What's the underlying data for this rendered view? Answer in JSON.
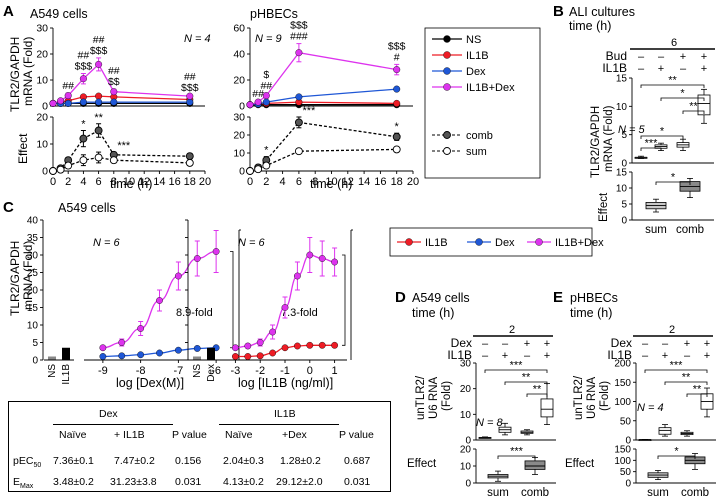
{
  "colors": {
    "ns": "#000000",
    "il1b": "#ee1c25",
    "dex": "#1f57d6",
    "combo": "#dd33ee",
    "sum_fill": "#ffffff",
    "comb_fill": "#555555",
    "box_sum": "#c8c8c8",
    "box_comb": "#8a8a8a"
  },
  "icons": {
    "marker": "circle-marker",
    "bracket": "significance-bracket"
  },
  "panels": {
    "A": {
      "letter": "A",
      "ylabel_top": "TLR2/GAPDH",
      "ylabel_mid": "mRNA (Fold)",
      "effect_label": "Effect",
      "xlabel": "time (h)",
      "legend": [
        "NS",
        "IL1B",
        "Dex",
        "IL1B+Dex"
      ],
      "legend2": [
        "comb",
        "sum"
      ]
    },
    "B": {
      "letter": "B",
      "title": "ALI cultures",
      "time_label": "time (h)",
      "time_value": "6",
      "row1": "Bud",
      "row2": "IL1B",
      "row1_signs": [
        "–",
        "–",
        "+",
        "+"
      ],
      "row2_signs": [
        "–",
        "+",
        "–",
        "+"
      ],
      "ylabel_top": "TLR2/GAPDH",
      "ylabel_mid": "mRNA (Fold)",
      "effect_label": "Effect",
      "n_label": "N = 5",
      "xcats": [
        "sum",
        "comb"
      ]
    },
    "C": {
      "letter": "C",
      "title": "A549 cells",
      "ylabel_top": "TLR2/GAPDH",
      "ylabel_mid": "mRNA (Fold)",
      "ns_label": "NS",
      "il1b_label": "IL1B",
      "dex_label": "Dex",
      "xlabel_left": "log [Dex(M)]",
      "xlabel_right": "log [IL1B (ng/ml)]",
      "fold_left": "8.9-fold",
      "fold_right": "7.3-fold",
      "n_label": "N = 6",
      "legend": [
        "IL1B",
        "Dex",
        "IL1B+Dex"
      ]
    },
    "D": {
      "letter": "D",
      "title": "A549 cells",
      "time_label": "time (h)",
      "time_value": "2",
      "row1": "Dex",
      "row2": "IL1B",
      "row1_signs": [
        "–",
        "–",
        "+",
        "+"
      ],
      "row2_signs": [
        "–",
        "+",
        "–",
        "+"
      ],
      "ylabel_top": "unTLR2/",
      "ylabel_mid": "U6 RNA",
      "ylabel_bot": "(Fold)",
      "effect_label": "Effect",
      "n_label": "N = 8",
      "xcats": [
        "sum",
        "comb"
      ]
    },
    "E": {
      "letter": "E",
      "title": "pHBECs",
      "time_label": "time (h)",
      "time_value": "2",
      "row1": "Dex",
      "row2": "IL1B",
      "row1_signs": [
        "–",
        "–",
        "+",
        "+"
      ],
      "row2_signs": [
        "–",
        "+",
        "–",
        "+"
      ],
      "ylabel_top": "unTLR2/",
      "ylabel_mid": "U6 RNA",
      "ylabel_bot": "(Fold)",
      "effect_label": "Effect",
      "n_label": "N = 4",
      "xcats": [
        "sum",
        "comb"
      ]
    }
  },
  "table": {
    "dex_header": "Dex",
    "il1b_header": "IL1B",
    "cols": [
      "Naïve",
      "+ IL1B",
      "P value",
      "Naïve",
      "+Dex",
      "P value"
    ],
    "rows": [
      {
        "label": "pEC",
        "label_sub": "50",
        "values": [
          "7.36±0.1",
          "7.47±0.2",
          "0.156",
          "2.04±0.3",
          "1.28±0.2",
          "0.687"
        ]
      },
      {
        "label": "E",
        "label_sub": "Max",
        "values": [
          "3.48±0.2",
          "31.23±3.8",
          "0.031",
          "4.13±0.2",
          "29.12±2.0",
          "0.031"
        ]
      }
    ]
  },
  "chart_data": [
    {
      "panel": "A-left",
      "type": "line",
      "title": "A549 cells",
      "xlabel": "time (h)",
      "ylabel": "TLR2/GAPDH mRNA (Fold)",
      "xlim": [
        0,
        20
      ],
      "ylim": [
        0,
        30
      ],
      "xticks": [
        0,
        2,
        4,
        6,
        8,
        10,
        12,
        14,
        16,
        18,
        20
      ],
      "yticks": [
        0,
        10,
        20,
        30
      ],
      "n_label": "N = 4",
      "x": [
        0,
        1,
        2,
        4,
        6,
        8,
        18
      ],
      "series": [
        {
          "name": "NS",
          "values": [
            1,
            1,
            1,
            1,
            1,
            1,
            1
          ]
        },
        {
          "name": "IL1B",
          "values": [
            1,
            1.5,
            2,
            3.5,
            3.8,
            3.5,
            2.5
          ]
        },
        {
          "name": "Dex",
          "values": [
            1,
            1,
            1,
            1.5,
            1.5,
            1.5,
            1.5
          ]
        },
        {
          "name": "IL1B+Dex",
          "values": [
            1,
            2,
            4,
            10.5,
            16,
            5.5,
            3.8
          ],
          "errors": [
            0,
            0.5,
            1,
            2,
            2.5,
            1,
            0.5
          ]
        }
      ],
      "sig_labels": [
        {
          "x": 2,
          "lines": [
            "##"
          ]
        },
        {
          "x": 4,
          "lines": [
            "##",
            "$$$"
          ]
        },
        {
          "x": 6,
          "lines": [
            "##",
            "$$$"
          ]
        },
        {
          "x": 8,
          "lines": [
            "##",
            "$$"
          ]
        },
        {
          "x": 18,
          "lines": [
            "##",
            "$$$"
          ]
        }
      ]
    },
    {
      "panel": "A-left-effect",
      "type": "line",
      "ylabel": "Effect",
      "ylim": [
        0,
        20
      ],
      "yticks": [
        0,
        10,
        20
      ],
      "x": [
        0,
        1,
        2,
        4,
        6,
        8,
        18
      ],
      "series": [
        {
          "name": "comb",
          "values": [
            0,
            1,
            4,
            12,
            15,
            6,
            5.5
          ],
          "errors": [
            0,
            0.5,
            1,
            3,
            2.5,
            1,
            1
          ]
        },
        {
          "name": "sum",
          "values": [
            0,
            0.5,
            2,
            4,
            5,
            4,
            3
          ],
          "errors": [
            0,
            0.5,
            1,
            2,
            2,
            1,
            0.5
          ]
        }
      ],
      "sig_labels": [
        {
          "x": 4,
          "text": "*"
        },
        {
          "x": 6,
          "text": "**"
        },
        {
          "x": 8,
          "text": "***"
        }
      ]
    },
    {
      "panel": "A-right",
      "type": "line",
      "title": "pHBECs",
      "xlabel": "time (h)",
      "xlim": [
        0,
        20
      ],
      "ylim": [
        0,
        60
      ],
      "xticks": [
        0,
        2,
        4,
        6,
        8,
        10,
        12,
        14,
        16,
        18,
        20
      ],
      "yticks": [
        0,
        20,
        40,
        60
      ],
      "n_label": "N = 9",
      "x": [
        0,
        1,
        2,
        6,
        18
      ],
      "series": [
        {
          "name": "NS",
          "values": [
            1,
            1,
            1,
            1,
            1
          ]
        },
        {
          "name": "IL1B",
          "values": [
            1,
            1.5,
            2,
            3,
            2
          ]
        },
        {
          "name": "Dex",
          "values": [
            1,
            1.5,
            3,
            7,
            13
          ]
        },
        {
          "name": "IL1B+Dex",
          "values": [
            1,
            3,
            8,
            41,
            28
          ],
          "errors": [
            0,
            1,
            2,
            7,
            4
          ]
        }
      ],
      "sig_labels": [
        {
          "x": 1,
          "lines": [
            "##"
          ]
        },
        {
          "x": 2,
          "lines": [
            "$",
            "##"
          ]
        },
        {
          "x": 6,
          "lines": [
            "$$$",
            "###"
          ]
        },
        {
          "x": 18,
          "lines": [
            "$$$",
            "#"
          ]
        }
      ]
    },
    {
      "panel": "A-right-effect",
      "type": "line",
      "ylim": [
        0,
        30
      ],
      "yticks": [
        0,
        10,
        20,
        30
      ],
      "x": [
        0,
        1,
        2,
        6,
        18
      ],
      "series": [
        {
          "name": "comb",
          "values": [
            0,
            2,
            6,
            27,
            19
          ],
          "errors": [
            0,
            1,
            2,
            3,
            2
          ]
        },
        {
          "name": "sum",
          "values": [
            0,
            1,
            3,
            11,
            12
          ],
          "errors": [
            0,
            0.5,
            1,
            1,
            1
          ]
        }
      ],
      "sig_labels": [
        {
          "x": 2,
          "text": "*"
        },
        {
          "x": 6,
          "text": "***"
        },
        {
          "x": 18,
          "text": "*"
        }
      ]
    },
    {
      "panel": "B",
      "type": "box",
      "ylim": [
        0,
        15
      ],
      "yticks": [
        0,
        5,
        10,
        15
      ],
      "categories": [
        "NS",
        "IL1B",
        "Bud",
        "Bud+IL1B"
      ],
      "boxes": [
        [
          0.8,
          1,
          1,
          1,
          1.2
        ],
        [
          2.2,
          2.6,
          2.9,
          3.2,
          3.5
        ],
        [
          2.2,
          2.8,
          3.2,
          3.6,
          4.2
        ],
        [
          7,
          8.5,
          10.5,
          12,
          13
        ]
      ],
      "brackets": [
        "**",
        "*",
        "**",
        "*",
        "***"
      ],
      "effect": {
        "ylim": [
          0,
          15
        ],
        "yticks": [
          0,
          5,
          10,
          15
        ],
        "categories": [
          "sum",
          "comb"
        ],
        "boxes": [
          [
            2.5,
            3.5,
            4.5,
            5.5,
            6.5
          ],
          [
            7,
            9,
            10.5,
            12,
            13
          ]
        ],
        "brackets": [
          "*"
        ]
      }
    },
    {
      "panel": "C-left",
      "type": "line",
      "xlabel": "log [Dex(M)]",
      "xlim": [
        -9.5,
        -5.5
      ],
      "xticks": [
        -9,
        -8,
        -7,
        -6
      ],
      "ylim": [
        0,
        40
      ],
      "yticks": [
        0,
        5,
        10,
        15,
        20,
        25,
        30,
        35,
        40
      ],
      "bars": [
        {
          "name": "NS",
          "value": 1
        },
        {
          "name": "IL1B",
          "value": 3.5
        }
      ],
      "x": [
        -9,
        -8.5,
        -8,
        -7.5,
        -7,
        -6.5,
        -6
      ],
      "series": [
        {
          "name": "IL1B+Dex",
          "values": [
            3.5,
            5,
            9,
            17,
            24,
            29,
            31
          ],
          "errors": [
            0.5,
            1,
            2,
            3,
            4,
            5,
            6
          ]
        },
        {
          "name": "Dex",
          "values": [
            1,
            1.2,
            1.5,
            2,
            2.8,
            3.3,
            3.5
          ]
        }
      ]
    },
    {
      "panel": "C-right",
      "type": "line",
      "xlabel": "log [IL1B (ng/ml)]",
      "xlim": [
        -3.5,
        1.5
      ],
      "xticks": [
        -3,
        -2,
        -1,
        0,
        1
      ],
      "ylim": [
        0,
        40
      ],
      "yticks": [
        0,
        5,
        10,
        15,
        20,
        25,
        30,
        35,
        40
      ],
      "bars": [
        {
          "name": "NS",
          "value": 1
        },
        {
          "name": "Dex",
          "value": 3.5
        }
      ],
      "x": [
        -3,
        -2.5,
        -2,
        -1.5,
        -1,
        -0.5,
        0,
        0.5,
        1
      ],
      "series": [
        {
          "name": "IL1B+Dex",
          "values": [
            3.5,
            4,
            5,
            8,
            15,
            24,
            30,
            29,
            28
          ],
          "errors": [
            0.5,
            0.5,
            1,
            2,
            3,
            4,
            5,
            5,
            4
          ]
        },
        {
          "name": "IL1B",
          "values": [
            1,
            1,
            1.2,
            2,
            3.5,
            4,
            4.2,
            4.2,
            4.2
          ]
        }
      ]
    },
    {
      "panel": "D",
      "type": "box",
      "ylim": [
        0,
        30
      ],
      "yticks": [
        0,
        10,
        20,
        30
      ],
      "categories": [
        "NS",
        "IL1B",
        "Dex",
        "Dex+IL1B"
      ],
      "boxes": [
        [
          0.8,
          1,
          1,
          1,
          1.2
        ],
        [
          2,
          3,
          4,
          5,
          6.5
        ],
        [
          2,
          2.6,
          3,
          3.5,
          4
        ],
        [
          6,
          9,
          12,
          16,
          22
        ]
      ],
      "brackets": [
        "***",
        "**",
        "**"
      ],
      "effect": {
        "ylim": [
          0,
          20
        ],
        "yticks": [
          0,
          10,
          20
        ],
        "categories": [
          "sum",
          "comb"
        ],
        "boxes": [
          [
            1,
            3,
            4,
            5,
            7
          ],
          [
            5,
            8,
            10,
            13,
            15
          ]
        ],
        "brackets": [
          "***"
        ]
      }
    },
    {
      "panel": "E",
      "type": "box",
      "ylim": [
        0,
        200
      ],
      "yticks": [
        0,
        50,
        100,
        150,
        200
      ],
      "categories": [
        "NS",
        "IL1B",
        "Dex",
        "Dex+IL1B"
      ],
      "boxes": [
        [
          0.8,
          1,
          1,
          1,
          1.2
        ],
        [
          10,
          15,
          25,
          32,
          40
        ],
        [
          10,
          14,
          17,
          20,
          24
        ],
        [
          60,
          80,
          100,
          120,
          135
        ]
      ],
      "brackets": [
        "***",
        "**",
        "**"
      ],
      "effect": {
        "ylim": [
          0,
          150
        ],
        "yticks": [
          0,
          50,
          100,
          150
        ],
        "categories": [
          "sum",
          "comb"
        ],
        "boxes": [
          [
            15,
            25,
            35,
            45,
            55
          ],
          [
            60,
            85,
            100,
            115,
            130
          ]
        ],
        "brackets": [
          "*"
        ]
      }
    }
  ]
}
